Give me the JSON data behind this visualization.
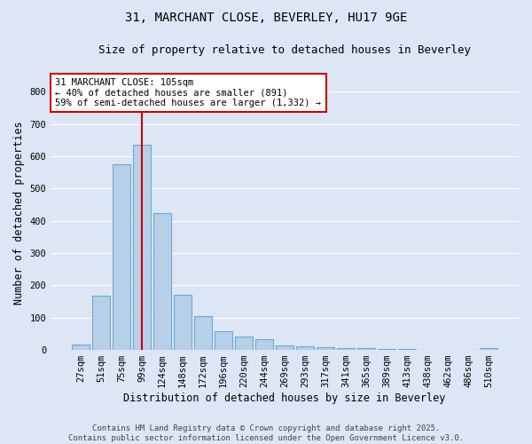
{
  "title": "31, MARCHANT CLOSE, BEVERLEY, HU17 9GE",
  "subtitle": "Size of property relative to detached houses in Beverley",
  "xlabel": "Distribution of detached houses by size in Beverley",
  "ylabel": "Number of detached properties",
  "bin_labels": [
    "27sqm",
    "51sqm",
    "75sqm",
    "99sqm",
    "124sqm",
    "148sqm",
    "172sqm",
    "196sqm",
    "220sqm",
    "244sqm",
    "269sqm",
    "293sqm",
    "317sqm",
    "341sqm",
    "365sqm",
    "389sqm",
    "413sqm",
    "438sqm",
    "462sqm",
    "486sqm",
    "510sqm"
  ],
  "bar_values": [
    18,
    168,
    574,
    636,
    424,
    170,
    104,
    57,
    41,
    32,
    14,
    10,
    9,
    7,
    5,
    4,
    3,
    1,
    0,
    0,
    6
  ],
  "bar_color": "#b8cfe8",
  "bar_edge_color": "#6aaad4",
  "background_color": "#dce6f5",
  "grid_color": "#ffffff",
  "vline_pos": 3.0,
  "vline_color": "#cc0000",
  "annotation_text": "31 MARCHANT CLOSE: 105sqm\n← 40% of detached houses are smaller (891)\n59% of semi-detached houses are larger (1,332) →",
  "annotation_box_color": "#ffffff",
  "annotation_box_edge": "#cc0000",
  "ylim": [
    0,
    850
  ],
  "yticks": [
    0,
    100,
    200,
    300,
    400,
    500,
    600,
    700,
    800
  ],
  "footnote": "Contains HM Land Registry data © Crown copyright and database right 2025.\nContains public sector information licensed under the Open Government Licence v3.0.",
  "title_fontsize": 10,
  "subtitle_fontsize": 9,
  "axis_label_fontsize": 8.5,
  "tick_fontsize": 7.5,
  "annotation_fontsize": 7.5,
  "footnote_fontsize": 6.5
}
